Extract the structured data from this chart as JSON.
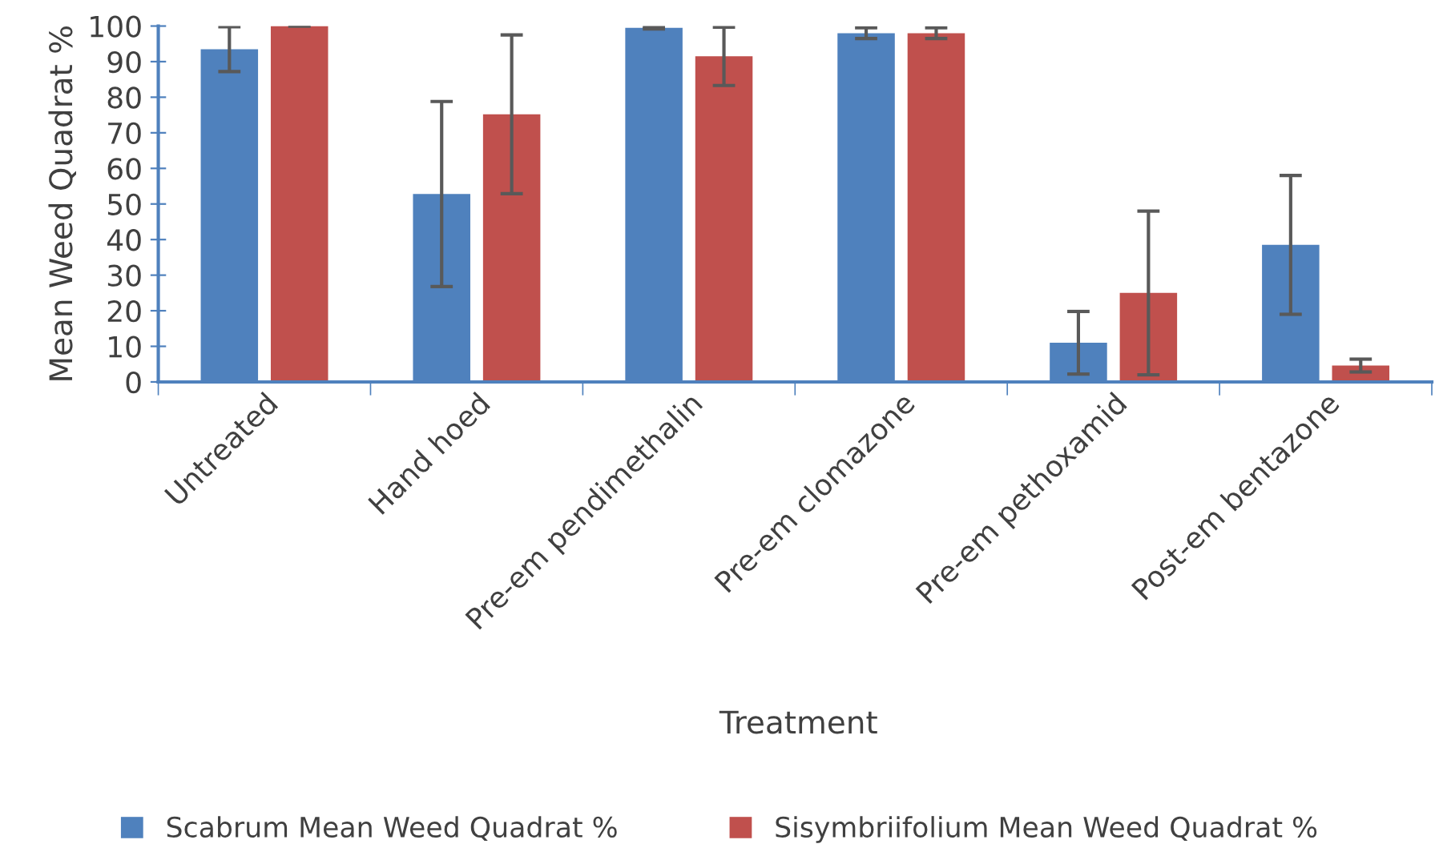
{
  "chart_data": {
    "type": "bar",
    "xlabel": "Treatment",
    "ylabel": "Mean Weed Quadrat %",
    "categories": [
      "Untreated",
      "Hand hoed",
      "Pre-em pendimethalin",
      "Pre-em clomazone",
      "Pre-em pethoxamid",
      "Post-em bentazone"
    ],
    "series": [
      {
        "name": "Scabrum Mean Weed Quadrat %",
        "color": "#4f81bd",
        "values": [
          93.5,
          52.8,
          99.5,
          98,
          11,
          38.5
        ],
        "errors": [
          6.3,
          26,
          0.3,
          1.5,
          8.8,
          19.5
        ]
      },
      {
        "name": "Sisymbriifolium Mean Weed Quadrat %",
        "color": "#c0504d",
        "values": [
          100,
          75.2,
          91.5,
          98,
          25,
          4.6
        ],
        "errors": [
          0,
          22.3,
          8.2,
          1.5,
          23,
          1.8
        ]
      }
    ],
    "ylim": [
      0,
      100
    ],
    "yticks": [
      0,
      10,
      20,
      30,
      40,
      50,
      60,
      70,
      80,
      90,
      100
    ],
    "grid": false,
    "legend": "bottom"
  }
}
